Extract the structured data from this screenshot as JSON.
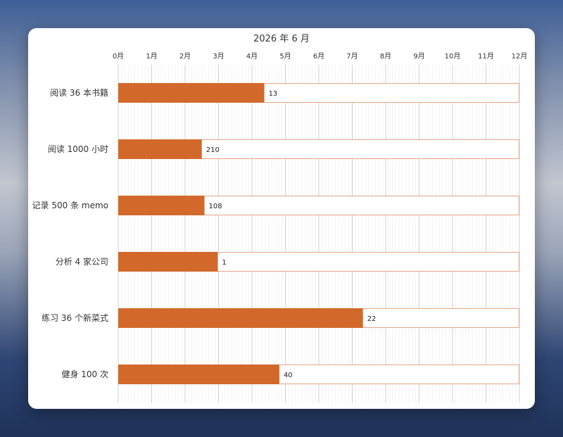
{
  "chart_data": {
    "type": "bar",
    "orientation": "horizontal",
    "title": "2026 年 6 月",
    "x_tick_labels": [
      "0月",
      "1月",
      "2月",
      "3月",
      "4月",
      "5月",
      "6月",
      "7月",
      "8月",
      "9月",
      "10月",
      "11月",
      "12月"
    ],
    "xlim": [
      0,
      12
    ],
    "categories": [
      "阅读 36 本书籍",
      "阅读 1000 小时",
      "记录 500 条 memo",
      "分析 4 家公司",
      "练习 36 个新菜式",
      "健身 100 次"
    ],
    "progress": [
      4.37,
      2.5,
      2.58,
      2.98,
      7.32,
      4.82
    ],
    "value_labels": [
      "13",
      "210",
      "108",
      "1",
      "22",
      "40"
    ],
    "grid": true,
    "colors": {
      "bar": "#D2692B",
      "track_border": "#E4A689",
      "grid": "#d9d9d9"
    }
  }
}
